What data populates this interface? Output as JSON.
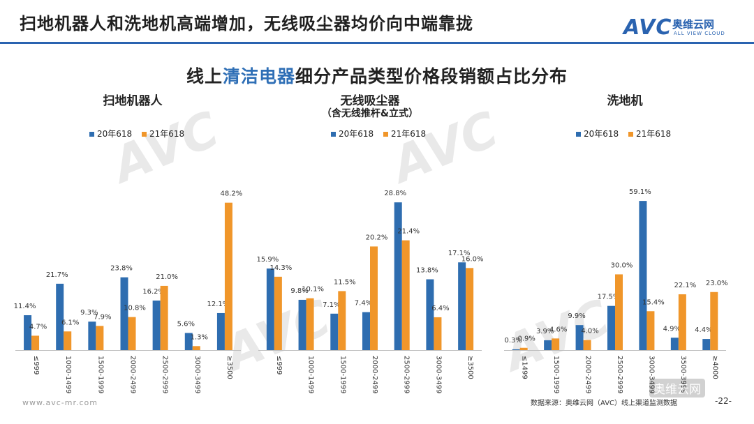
{
  "header": {
    "title": "扫地机器人和洗地机高端增加，无线吸尘器均价向中端靠拢",
    "logo_mark": "AVC",
    "logo_cn": "奥维云网",
    "logo_en": "ALL VIEW CLOUD"
  },
  "subtitle": {
    "prefix": "线上",
    "highlight": "清洁电器",
    "suffix": "细分产品类型价格段销额占比分布"
  },
  "legend": {
    "series_a": "20年618",
    "series_b": "21年618"
  },
  "colors": {
    "series_a": "#2e6db0",
    "series_b": "#f0962a",
    "accent": "#2a63b0"
  },
  "chart_data": [
    {
      "type": "bar",
      "title": "扫地机器人",
      "subtitle": "",
      "categories": [
        "≤999",
        "1000-1499",
        "1500-1999",
        "2000-2499",
        "2500-2999",
        "3000-3499",
        "≥3500"
      ],
      "series": [
        {
          "name": "20年618",
          "values": [
            11.4,
            21.7,
            9.3,
            23.8,
            16.2,
            5.6,
            12.1
          ],
          "labels": [
            "11.4%",
            "21.7%",
            "9.3%",
            "23.8%",
            "16.2%",
            "5.6%",
            "12.1%"
          ]
        },
        {
          "name": "21年618",
          "values": [
            4.7,
            6.1,
            7.9,
            10.8,
            21.0,
            1.3,
            48.2
          ],
          "labels": [
            "4.7%",
            "6.1%",
            "7.9%",
            "10.8%",
            "21.0%",
            "1.3%",
            "48.2%"
          ]
        }
      ],
      "ylim": [
        0,
        52
      ]
    },
    {
      "type": "bar",
      "title": "无线吸尘器",
      "subtitle": "（含无线推杆&立式）",
      "categories": [
        "≤999",
        "1000-1499",
        "1500-1999",
        "2000-2499",
        "2500-2999",
        "3000-3499",
        "≥3500"
      ],
      "series": [
        {
          "name": "20年618",
          "values": [
            15.9,
            9.8,
            7.1,
            7.4,
            28.8,
            13.8,
            17.1
          ],
          "labels": [
            "15.9%",
            "9.8%",
            "7.1%",
            "7.4%",
            "28.8%",
            "13.8%",
            "17.1%"
          ]
        },
        {
          "name": "21年618",
          "values": [
            14.3,
            10.1,
            11.5,
            20.2,
            21.4,
            6.4,
            16.0
          ],
          "labels": [
            "14.3%",
            "10.1%",
            "11.5%",
            "20.2%",
            "21.4%",
            "6.4%",
            "16.0%"
          ]
        }
      ],
      "ylim": [
        0,
        31
      ]
    },
    {
      "type": "bar",
      "title": "洗地机",
      "subtitle": "",
      "categories": [
        "≤1499",
        "1500-1999",
        "2000-2499",
        "2500-2999",
        "3000-3499",
        "3500-3999",
        "≥4000"
      ],
      "series": [
        {
          "name": "20年618",
          "values": [
            0.3,
            3.9,
            9.9,
            17.5,
            59.1,
            4.9,
            4.4
          ],
          "labels": [
            "0.3%",
            "3.9%",
            "9.9%",
            "17.5%",
            "59.1%",
            "4.9%",
            "4.4%"
          ]
        },
        {
          "name": "21年618",
          "values": [
            0.9,
            4.6,
            4.0,
            30.0,
            15.4,
            22.1,
            23.0
          ],
          "labels": [
            "0.9%",
            "4.6%",
            "4.0%",
            "30.0%",
            "15.4%",
            "22.1%",
            "23.0%"
          ]
        }
      ],
      "ylim": [
        0,
        63
      ]
    }
  ],
  "footer": {
    "website": "www.avc-mr.com",
    "source": "数据来源：奥维云网（AVC）线上渠道监测数据",
    "page": "-22-",
    "badge": "奥维云网"
  }
}
